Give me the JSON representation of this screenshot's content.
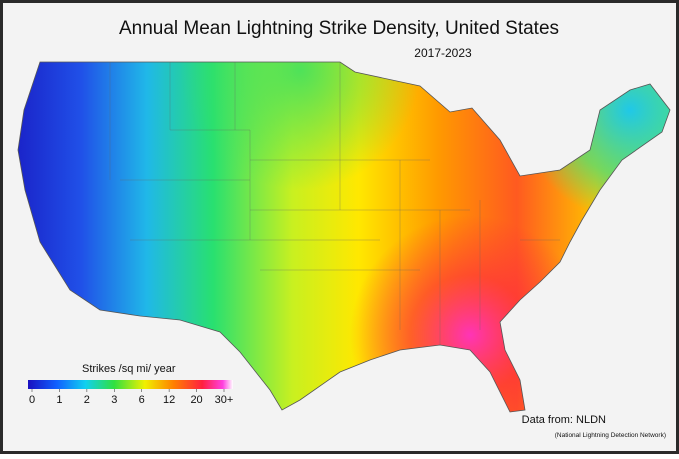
{
  "title": "Annual Mean Lightning Strike Density, United States",
  "subtitle": "2017-2023",
  "legend": {
    "title": "Strikes /sq mi/ year",
    "ticks": [
      0,
      1,
      2,
      3,
      6,
      12,
      20,
      {
        "value": 30,
        "label": "30+"
      }
    ]
  },
  "source": {
    "line1": "Data from: NLDN",
    "line2": "(National Lightning Detection Network)"
  }
}
